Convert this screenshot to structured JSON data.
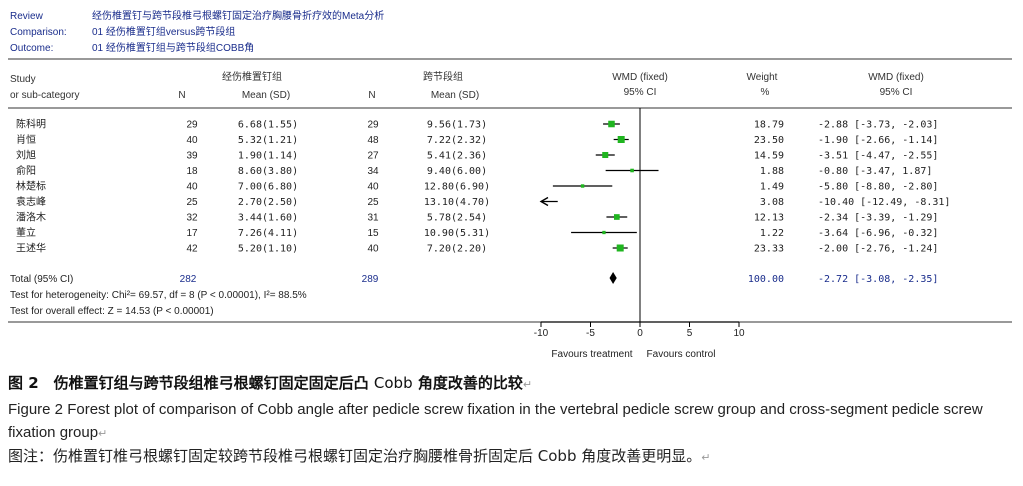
{
  "header": {
    "review_label": "Review",
    "review_value": "经伤椎置钉与跨节段椎弓根螺钉固定治疗胸腰骨折疗效的Meta分析",
    "comparison_label": "Comparison:",
    "comparison_value": "01 经伤椎置钉组versus跨节段组",
    "outcome_label": "Outcome:",
    "outcome_value": "01 经伤椎置钉组与跨节段组COBB角"
  },
  "columns": {
    "study_line1": "Study",
    "study_line2": "or sub-category",
    "group1": "经伤椎置钉组",
    "group2": "跨节段组",
    "n": "N",
    "mean_sd": "Mean (SD)",
    "wmd_line1": "WMD (fixed)",
    "wmd_line2": "95% CI",
    "weight_line1": "Weight",
    "weight_line2": "%",
    "wmd2_line1": "WMD (fixed)",
    "wmd2_line2": "95% CI"
  },
  "chart_data": {
    "type": "forest",
    "xlim": [
      -10,
      10
    ],
    "x_ticks": [
      -10,
      -5,
      0,
      5,
      10
    ],
    "x_tick_labels": [
      "-10",
      "-5",
      "0",
      "5",
      "10"
    ],
    "favours_left": "Favours treatment",
    "favours_right": "Favours control",
    "studies": [
      {
        "name": "陈科明",
        "n1": "29",
        "ms1": "6.68(1.55)",
        "n2": "29",
        "ms2": "9.56(1.73)",
        "wmd": -2.88,
        "lo": -3.73,
        "hi": -2.03,
        "weight": "18.79",
        "ci_text": "-2.88 [-3.73, -2.03]"
      },
      {
        "name": "肖恒",
        "n1": "40",
        "ms1": "5.32(1.21)",
        "n2": "48",
        "ms2": "7.22(2.32)",
        "wmd": -1.9,
        "lo": -2.66,
        "hi": -1.14,
        "weight": "23.50",
        "ci_text": "-1.90 [-2.66, -1.14]"
      },
      {
        "name": "刘旭",
        "n1": "39",
        "ms1": "1.90(1.14)",
        "n2": "27",
        "ms2": "5.41(2.36)",
        "wmd": -3.51,
        "lo": -4.47,
        "hi": -2.55,
        "weight": "14.59",
        "ci_text": "-3.51 [-4.47, -2.55]"
      },
      {
        "name": "俞阳",
        "n1": "18",
        "ms1": "8.60(3.80)",
        "n2": "34",
        "ms2": "9.40(6.00)",
        "wmd": -0.8,
        "lo": -3.47,
        "hi": 1.87,
        "weight": "1.88",
        "ci_text": "-0.80 [-3.47, 1.87]"
      },
      {
        "name": "林楚标",
        "n1": "40",
        "ms1": "7.00(6.80)",
        "n2": "40",
        "ms2": "12.80(6.90)",
        "wmd": -5.8,
        "lo": -8.8,
        "hi": -2.8,
        "weight": "1.49",
        "ci_text": "-5.80 [-8.80, -2.80]"
      },
      {
        "name": "袁志峰",
        "n1": "25",
        "ms1": "2.70(2.50)",
        "n2": "25",
        "ms2": "13.10(4.70)",
        "wmd": -10.4,
        "lo": -12.49,
        "hi": -8.31,
        "weight": "3.08",
        "ci_text": "-10.40 [-12.49, -8.31]"
      },
      {
        "name": "潘洛木",
        "n1": "32",
        "ms1": "3.44(1.60)",
        "n2": "31",
        "ms2": "5.78(2.54)",
        "wmd": -2.34,
        "lo": -3.39,
        "hi": -1.29,
        "weight": "12.13",
        "ci_text": "-2.34 [-3.39, -1.29]"
      },
      {
        "name": "董立",
        "n1": "17",
        "ms1": "7.26(4.11)",
        "n2": "15",
        "ms2": "10.90(5.31)",
        "wmd": -3.64,
        "lo": -6.96,
        "hi": -0.32,
        "weight": "1.22",
        "ci_text": "-3.64 [-6.96, -0.32]"
      },
      {
        "name": "王述华",
        "n1": "42",
        "ms1": "5.20(1.10)",
        "n2": "40",
        "ms2": "7.20(2.20)",
        "wmd": -2.0,
        "lo": -2.76,
        "hi": -1.24,
        "weight": "23.33",
        "ci_text": "-2.00 [-2.76, -1.24]"
      }
    ],
    "total": {
      "label": "Total (95% CI)",
      "n1": "282",
      "n2": "289",
      "wmd": -2.72,
      "lo": -3.08,
      "hi": -2.35,
      "weight": "100.00",
      "ci_text": "-2.72 [-3.08, -2.35]"
    },
    "heterogeneity": "Test for heterogeneity: Chi²= 69.57, df = 8 (P < 0.00001), I²= 88.5%",
    "overall_effect": "Test for overall effect: Z = 14.53 (P < 0.00001)"
  },
  "caption": {
    "cn_title_bold1": "图 2　伤椎置钉组与跨节段组椎弓根螺钉固定固定后凸 ",
    "cn_title_regular": "Cobb",
    "cn_title_bold2": " 角度改善的比较",
    "en_text": "Figure 2    Forest plot of comparison of Cobb angle after pedicle screw fixation in the vertebral pedicle screw group and cross-segment pedicle screw fixation group",
    "note": "图注：伤椎置钉椎弓根螺钉固定较跨节段椎弓根螺钉固定治疗胸腰椎骨折固定后 Cobb 角度改善更明显。"
  },
  "colors": {
    "header_blue": "#1a2d8c",
    "square_green": "#1fb51f",
    "text": "#222222"
  }
}
